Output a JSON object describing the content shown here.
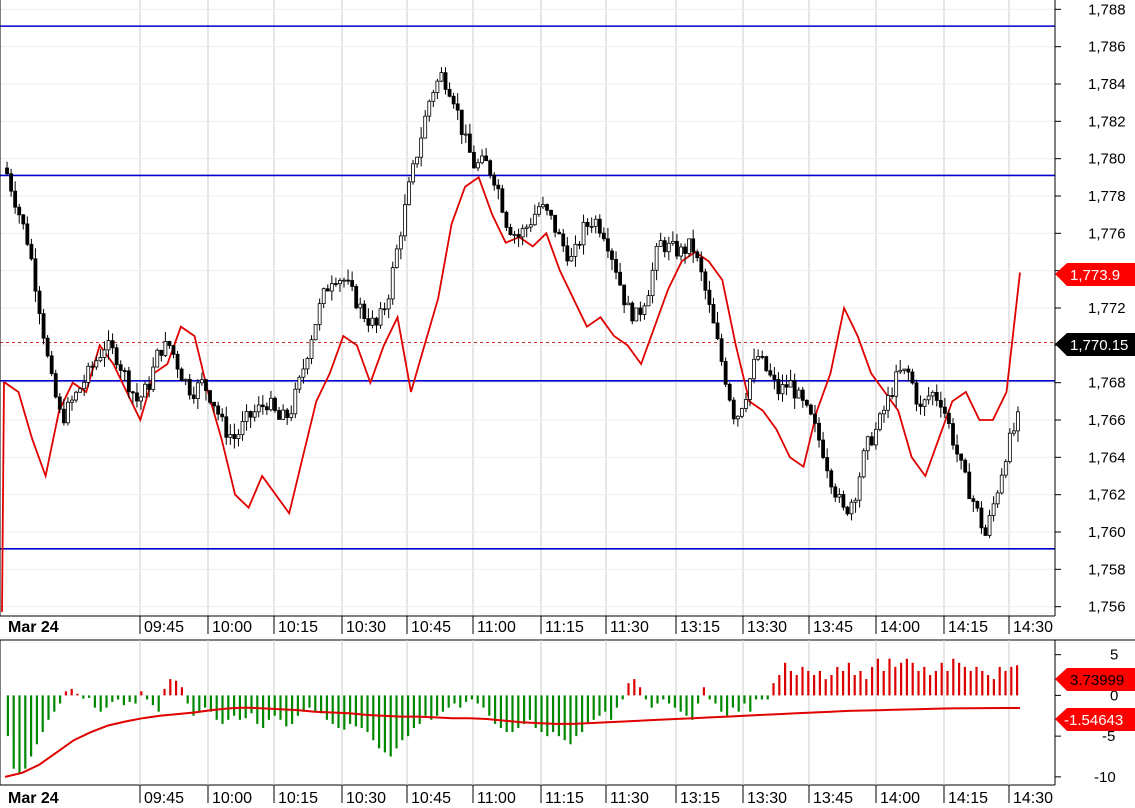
{
  "colors": {
    "candle_up": "#ffffff",
    "candle_down": "#000000",
    "overlay_line": "#e00000",
    "level_lines": "#0000cc",
    "last_price_line": "#d03030",
    "hist_pos": "#dd0000",
    "hist_neg": "#008800",
    "grid": "#cccccc"
  },
  "chart_data": [
    {
      "type": "candlestick",
      "title": "",
      "xlabel": "",
      "ylabel": "",
      "ylim": [
        1755.5,
        1788.5
      ],
      "y_ticks": [
        "1,788",
        "1,786",
        "1,784",
        "1,782",
        "1,780",
        "1,778",
        "1,776",
        "1,774",
        "1,772",
        "1,770",
        "1,768",
        "1,766",
        "1,764",
        "1,762",
        "1,760",
        "1,758",
        "1,756"
      ],
      "y_tick_values": [
        1788,
        1786,
        1784,
        1782,
        1780,
        1778,
        1776,
        1774,
        1772,
        1770,
        1768,
        1766,
        1764,
        1762,
        1760,
        1758,
        1756
      ],
      "x_ticks": [
        "Mar 24",
        "09:45",
        "10:00",
        "10:15",
        "10:30",
        "10:45",
        "11:00",
        "11:15",
        "11:30",
        "13:15",
        "13:30",
        "13:45",
        "14:00",
        "14:15",
        "14:30"
      ],
      "grid": true,
      "horizontal_levels": [
        1787.1,
        1779.1,
        1768.1,
        1759.1
      ],
      "last_price_level": 1770.15,
      "tags": {
        "overlay_last": "1,773.9",
        "last_price": "1,770.15"
      },
      "price_path": [
        1779.2,
        1777.3,
        1775.4,
        1772.0,
        1768.3,
        1766.0,
        1767.0,
        1768.0,
        1769.0,
        1770.0,
        1769.5,
        1768.2,
        1767.0,
        1767.8,
        1769.8,
        1770.0,
        1768.5,
        1767.5,
        1768.0,
        1767.0,
        1765.5,
        1765.0,
        1766.0,
        1766.5,
        1767.0,
        1766.0,
        1766.3,
        1768.2,
        1770.5,
        1772.5,
        1773.8,
        1773.5,
        1772.5,
        1771.5,
        1771.0,
        1772.5,
        1775.5,
        1778.5,
        1781.0,
        1783.5,
        1784.5,
        1783.5,
        1781.2,
        1779.6,
        1779.8,
        1778.8,
        1776.5,
        1775.8,
        1776.5,
        1777.5,
        1776.8,
        1775.5,
        1774.5,
        1776.2,
        1776.8,
        1776.0,
        1774.2,
        1772.0,
        1771.5,
        1773.0,
        1775.5,
        1775.2,
        1775.0,
        1775.4,
        1773.5,
        1771.0,
        1768.5,
        1766.0,
        1767.5,
        1769.5,
        1768.5,
        1767.5,
        1768.0,
        1767.0,
        1766.0,
        1764.5,
        1762.5,
        1761.0,
        1762.0,
        1764.5,
        1765.5,
        1767.0,
        1768.5,
        1768.5,
        1766.5,
        1767.5,
        1767.0,
        1765.0,
        1763.0,
        1761.5,
        1759.8,
        1762.0,
        1764.5,
        1766.0
      ],
      "overlay_path": [
        1768.0,
        1767.5,
        1765.0,
        1763.0,
        1766.5,
        1768.0,
        1767.5,
        1770.0,
        1769.0,
        1767.5,
        1766.0,
        1768.5,
        1769.0,
        1771.0,
        1770.5,
        1767.5,
        1765.0,
        1762.0,
        1761.3,
        1763.0,
        1762.0,
        1761.0,
        1764.0,
        1767.0,
        1768.5,
        1770.5,
        1770.0,
        1768.0,
        1770.0,
        1771.5,
        1767.5,
        1770.0,
        1772.5,
        1776.5,
        1778.5,
        1779.0,
        1777.0,
        1775.5,
        1775.8,
        1775.3,
        1776.0,
        1774.0,
        1772.5,
        1771.0,
        1771.5,
        1770.5,
        1770.0,
        1769.0,
        1771.0,
        1773.0,
        1774.5,
        1775.0,
        1774.5,
        1773.5,
        1770.0,
        1767.0,
        1766.5,
        1765.5,
        1764.0,
        1763.5,
        1766.5,
        1768.5,
        1772.0,
        1770.5,
        1768.5,
        1767.5,
        1766.5,
        1764.0,
        1763.0,
        1765.0,
        1767.0,
        1767.5,
        1766.0,
        1766.0,
        1767.5,
        1773.9
      ]
    },
    {
      "type": "bar",
      "title": "",
      "xlabel": "",
      "ylabel": "",
      "ylim": [
        -11.0,
        6.8
      ],
      "y_ticks": [
        "5",
        "0",
        "-5",
        "-10"
      ],
      "y_tick_values": [
        5,
        0,
        -5,
        -10
      ],
      "x_ticks": [
        "Mar 24",
        "09:45",
        "10:00",
        "10:15",
        "10:30",
        "10:45",
        "11:00",
        "11:15",
        "11:30",
        "13:15",
        "13:30",
        "13:45",
        "14:00",
        "14:15",
        "14:30"
      ],
      "series": [
        {
          "values": [
            -5.0,
            -9.0,
            -9.5,
            -9.0,
            -7.5,
            -6.0,
            -4.5,
            -3.0,
            -2.0,
            -1.0,
            0.5,
            0.8,
            0.2,
            -0.4,
            -0.3,
            -1.5,
            -2.0,
            -1.5,
            -0.8,
            -0.5,
            -1.2,
            -0.8,
            -1.0,
            0.5,
            -0.5,
            -1.2,
            -2.0,
            0.8,
            2.0,
            1.8,
            1.0,
            -1.0,
            -2.5,
            -2.0,
            -1.5,
            -2.0,
            -3.0,
            -3.5,
            -3.0,
            -2.5,
            -3.0,
            -2.8,
            -2.2,
            -3.5,
            -4.0,
            -3.0,
            -2.5,
            -3.0,
            -3.8,
            -3.5,
            -2.5,
            -2.0,
            -1.5,
            -2.0,
            -2.2,
            -3.0,
            -3.5,
            -4.0,
            -4.2,
            -3.5,
            -3.8,
            -4.0,
            -4.5,
            -5.5,
            -6.5,
            -7.0,
            -7.5,
            -6.5,
            -5.5,
            -5.0,
            -4.0,
            -3.5,
            -2.5,
            -3.0,
            -2.5,
            -2.0,
            -1.5,
            -1.0,
            -1.5,
            -0.8,
            -0.5,
            -1.0,
            -1.5,
            -2.5,
            -3.5,
            -4.0,
            -4.5,
            -4.5,
            -4.0,
            -3.5,
            -3.0,
            -4.0,
            -4.5,
            -5.0,
            -4.5,
            -5.0,
            -5.5,
            -6.0,
            -5.0,
            -4.5,
            -3.5,
            -3.0,
            -2.5,
            -2.0,
            -3.0,
            -1.5,
            -0.5,
            1.5,
            2.0,
            1.0,
            -0.5,
            -1.5,
            -1.0,
            -0.5,
            -1.0,
            -1.5,
            -2.0,
            -2.5,
            -3.0,
            -1.0,
            1.0,
            -0.5,
            -1.0,
            -2.0,
            -2.5,
            -1.5,
            -2.0,
            -1.0,
            -2.0,
            -0.5,
            -0.5,
            -0.5,
            1.5,
            2.5,
            4.0,
            3.0,
            2.5,
            3.5,
            3.0,
            2.5,
            3.0,
            2.0,
            2.5,
            3.5,
            3.0,
            4.0,
            2.5,
            3.0,
            2.0,
            3.5,
            4.5,
            3.0,
            4.5,
            3.5,
            4.0,
            4.5,
            4.0,
            3.0,
            3.5,
            2.5,
            3.0,
            4.0,
            3.0,
            4.5,
            4.0,
            3.5,
            3.0,
            3.5,
            3.0,
            2.5,
            2.0,
            3.5,
            3.0,
            3.5,
            3.7
          ]
        },
        {
          "values": [
            -10.0,
            -9.5,
            -8.5,
            -7.0,
            -5.5,
            -4.5,
            -3.7,
            -3.2,
            -2.8,
            -2.5,
            -2.3,
            -2.1,
            -1.8,
            -1.6,
            -1.5,
            -1.6,
            -1.7,
            -1.8,
            -2.0,
            -2.1,
            -2.2,
            -2.4,
            -2.5,
            -2.6,
            -2.6,
            -2.7,
            -2.8,
            -2.8,
            -2.9,
            -3.1,
            -3.3,
            -3.4,
            -3.5,
            -3.5,
            -3.4,
            -3.3,
            -3.2,
            -3.1,
            -3.0,
            -2.9,
            -2.8,
            -2.7,
            -2.6,
            -2.5,
            -2.4,
            -2.3,
            -2.2,
            -2.1,
            -2.0,
            -1.9,
            -1.85,
            -1.8,
            -1.75,
            -1.7,
            -1.65,
            -1.6,
            -1.58,
            -1.56,
            -1.55,
            -1.546
          ]
        }
      ],
      "tags": {
        "histogram_last": "3.73999",
        "signal_last": "-1.54643"
      }
    }
  ]
}
